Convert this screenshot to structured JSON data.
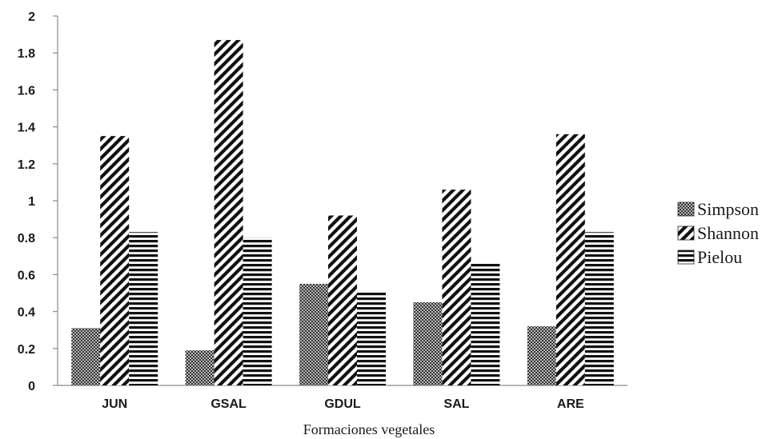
{
  "chart_data": {
    "type": "bar",
    "title": "",
    "xlabel": "Formaciones vegetales",
    "ylabel": "",
    "ylim": [
      0,
      2
    ],
    "yticks": [
      "0",
      "0.2",
      "0.4",
      "0.6",
      "0.8",
      "1",
      "1.2",
      "1.4",
      "1.6",
      "1.8",
      "2"
    ],
    "categories": [
      "JUN",
      "GSAL",
      "GDUL",
      "SAL",
      "ARE"
    ],
    "series": [
      {
        "name": "Simpson",
        "values": [
          0.31,
          0.19,
          0.55,
          0.45,
          0.32
        ],
        "pattern": "crosshatch"
      },
      {
        "name": "Shannon",
        "values": [
          1.35,
          1.87,
          0.92,
          1.06,
          1.36
        ],
        "pattern": "diagonal"
      },
      {
        "name": "Pielou",
        "values": [
          0.83,
          0.8,
          0.51,
          0.66,
          0.83
        ],
        "pattern": "horizontal"
      }
    ],
    "grid": false,
    "legend_position": "right"
  }
}
